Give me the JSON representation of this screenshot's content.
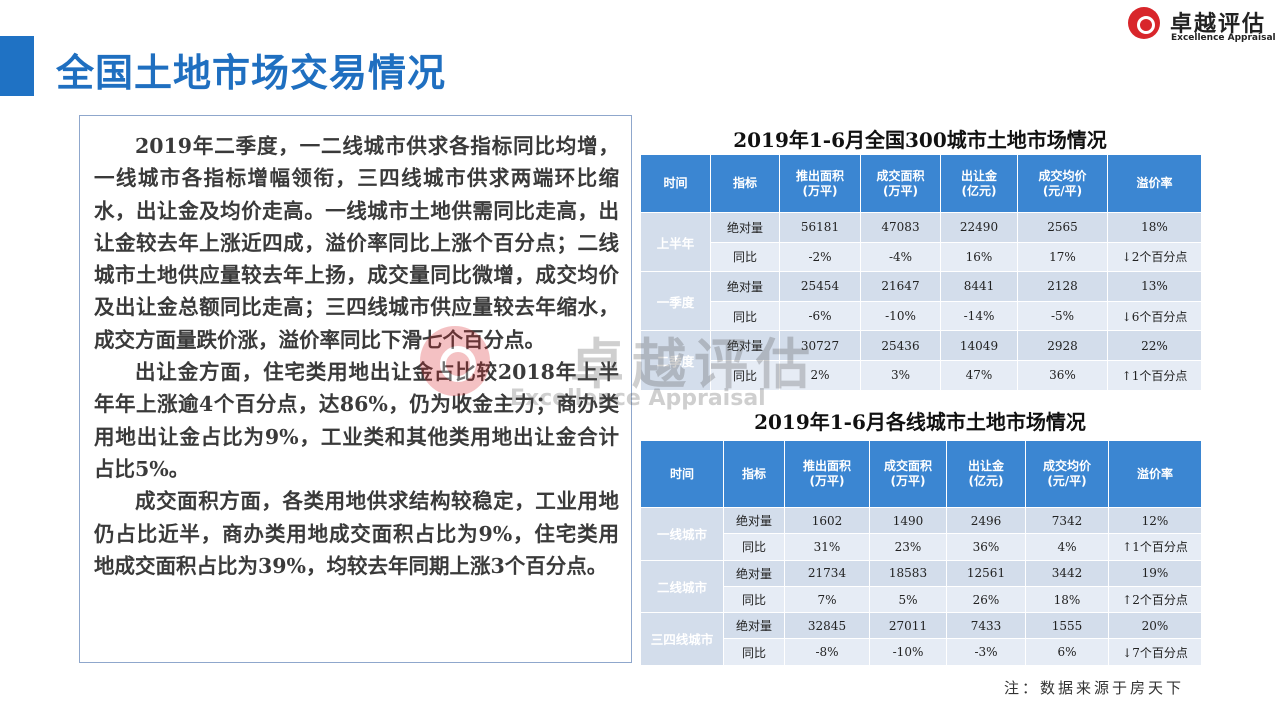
{
  "page_title": "全国土地市场交易情况",
  "logo": {
    "cn": "卓越评估",
    "en": "Excellence Appraisal"
  },
  "watermark": {
    "cn": "卓越评估",
    "en": "Excellence Appraisal"
  },
  "paragraphs": [
    "2019年二季度，一二线城市供求各指标同比均增，一线城市各指标增幅领衔，三四线城市供求两端环比缩水，出让金及均价走高。一线城市土地供需同比走高，出让金较去年上涨近四成，溢价率同比上涨个百分点；二线城市土地供应量较去年上扬，成交量同比微增，成交均价及出让金总额同比走高；三四线城市供应量较去年缩水，成交方面量跌价涨，溢价率同比下滑七个百分点。",
    "出让金方面，住宅类用地出让金占比较2018年上半年年上涨逾4个百分点，达86%，仍为收金主力；商办类用地出让金占比为9%，工业类和其他类用地出让金合计占比5%。",
    "成交面积方面，各类用地供求结构较稳定，工业用地仍占比近半，商办类用地成交面积占比为9%，住宅类用地成交面积占比为39%，均较去年同期上涨3个百分点。"
  ],
  "table1": {
    "title": "2019年1-6月全国300城市土地市场情况",
    "headers": [
      "时间",
      "指标",
      "推出面积\n(万平)",
      "成交面积\n(万平)",
      "出让金\n(亿元)",
      "成交均价\n(元/平)",
      "溢价率"
    ],
    "groups": [
      {
        "label": "上半年",
        "rows": [
          [
            "绝对量",
            "56181",
            "47083",
            "22490",
            "2565",
            "18%"
          ],
          [
            "同比",
            "-2%",
            "-4%",
            "16%",
            "17%",
            "↓2个百分点"
          ]
        ]
      },
      {
        "label": "一季度",
        "rows": [
          [
            "绝对量",
            "25454",
            "21647",
            "8441",
            "2128",
            "13%"
          ],
          [
            "同比",
            "-6%",
            "-10%",
            "-14%",
            "-5%",
            "↓6个百分点"
          ]
        ]
      },
      {
        "label": "二季度",
        "rows": [
          [
            "绝对量",
            "30727",
            "25436",
            "14049",
            "2928",
            "22%"
          ],
          [
            "同比",
            "2%",
            "3%",
            "47%",
            "36%",
            "↑1个百分点"
          ]
        ]
      }
    ]
  },
  "table2": {
    "title": "2019年1-6月各线城市土地市场情况",
    "headers": [
      "时间",
      "指标",
      "推出面积\n(万平)",
      "成交面积\n(万平)",
      "出让金\n(亿元)",
      "成交均价\n(元/平)",
      "溢价率"
    ],
    "groups": [
      {
        "label": "一线城市",
        "rows": [
          [
            "绝对量",
            "1602",
            "1490",
            "2496",
            "7342",
            "12%"
          ],
          [
            "同比",
            "31%",
            "23%",
            "36%",
            "4%",
            "↑1个百分点"
          ]
        ]
      },
      {
        "label": "二线城市",
        "rows": [
          [
            "绝对量",
            "21734",
            "18583",
            "12561",
            "3442",
            "19%"
          ],
          [
            "同比",
            "7%",
            "5%",
            "26%",
            "18%",
            "↑2个百分点"
          ]
        ]
      },
      {
        "label": "三四线城市",
        "rows": [
          [
            "绝对量",
            "32845",
            "27011",
            "7433",
            "1555",
            "20%"
          ],
          [
            "同比",
            "-8%",
            "-10%",
            "-3%",
            "6%",
            "↓7个百分点"
          ]
        ]
      }
    ]
  },
  "note": "注：数据来源于房天下"
}
